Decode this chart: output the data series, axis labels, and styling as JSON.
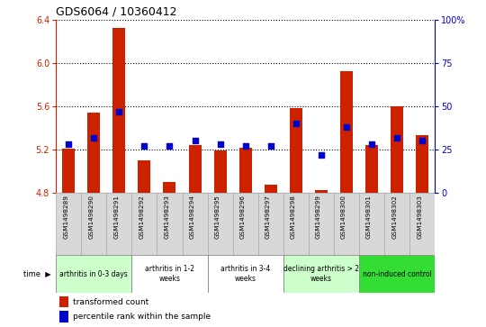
{
  "title": "GDS6064 / 10360412",
  "samples": [
    "GSM1498289",
    "GSM1498290",
    "GSM1498291",
    "GSM1498292",
    "GSM1498293",
    "GSM1498294",
    "GSM1498295",
    "GSM1498296",
    "GSM1498297",
    "GSM1498298",
    "GSM1498299",
    "GSM1498300",
    "GSM1498301",
    "GSM1498302",
    "GSM1498303"
  ],
  "transformed_counts": [
    5.21,
    5.54,
    6.32,
    5.1,
    4.9,
    5.24,
    5.19,
    5.22,
    4.88,
    5.58,
    4.83,
    5.92,
    5.24,
    5.6,
    5.33
  ],
  "percentile_ranks": [
    28,
    32,
    47,
    27,
    27,
    30,
    28,
    27,
    27,
    40,
    22,
    38,
    28,
    32,
    30
  ],
  "ylim_left": [
    4.8,
    6.4
  ],
  "ylim_right": [
    0,
    100
  ],
  "yticks_left": [
    4.8,
    5.2,
    5.6,
    6.0,
    6.4
  ],
  "yticks_right": [
    0,
    25,
    50,
    75,
    100
  ],
  "bar_color": "#cc2200",
  "dot_color": "#0000cc",
  "bar_bottom": 4.8,
  "groups": [
    {
      "label": "arthritis in 0-3 days",
      "start": 0,
      "end": 3,
      "color": "#ccffcc"
    },
    {
      "label": "arthritis in 1-2\nweeks",
      "start": 3,
      "end": 6,
      "color": "#ffffff"
    },
    {
      "label": "arthritis in 3-4\nweeks",
      "start": 6,
      "end": 9,
      "color": "#ffffff"
    },
    {
      "label": "declining arthritis > 2\nweeks",
      "start": 9,
      "end": 12,
      "color": "#ccffcc"
    },
    {
      "label": "non-induced control",
      "start": 12,
      "end": 15,
      "color": "#33dd33"
    }
  ],
  "legend_bar_label": "transformed count",
  "legend_dot_label": "percentile rank within the sample",
  "time_label": "time",
  "left_axis_color": "#cc2200",
  "right_axis_color": "#0000cc",
  "sample_box_color": "#d8d8d8",
  "sample_box_edge": "#aaaaaa"
}
